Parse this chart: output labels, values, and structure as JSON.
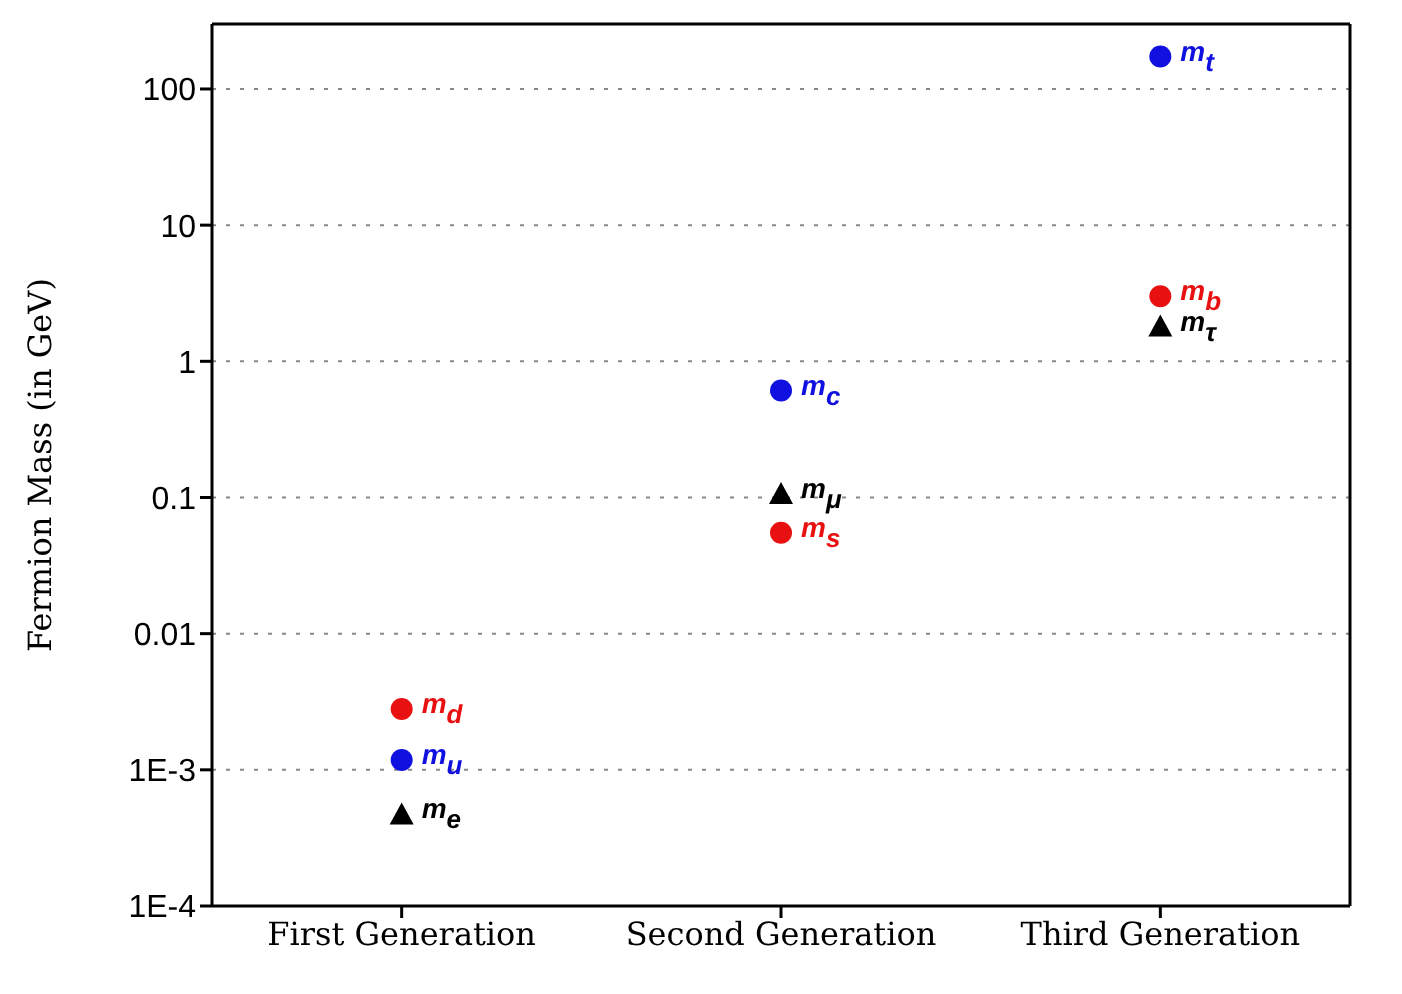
{
  "chart_data": {
    "type": "scatter",
    "ylabel": "Fermion Mass (in GeV)",
    "categories": [
      "First Generation",
      "Second Generation",
      "Third Generation"
    ],
    "log": "y",
    "ylim": [
      0.0001,
      300
    ],
    "yticks": [
      {
        "value": 0.0001,
        "label": "1E-4"
      },
      {
        "value": 0.001,
        "label": "1E-3"
      },
      0.01,
      0.1,
      1,
      10,
      100
    ],
    "grid": "y",
    "legend": false,
    "series": [
      {
        "color": "#1010e0",
        "marker": "circle",
        "values": [
          0.00118,
          0.61,
          173
        ],
        "value_labels": [
          "m$_{u}$",
          "m$_{c}$",
          "m$_{t}$"
        ]
      },
      {
        "color": "#e81010",
        "marker": "circle",
        "values": [
          0.0028,
          0.055,
          3.0
        ],
        "value_labels": [
          "m$_{d}$",
          "m$_{s}$",
          "m$_{b}$"
        ]
      },
      {
        "color": "#000000",
        "marker": "triangle",
        "values": [
          0.00047,
          0.106,
          1.8
        ],
        "value_labels": [
          "m$_{e}$",
          "m$_{μ}$",
          "m$_{τ}$"
        ]
      }
    ]
  }
}
